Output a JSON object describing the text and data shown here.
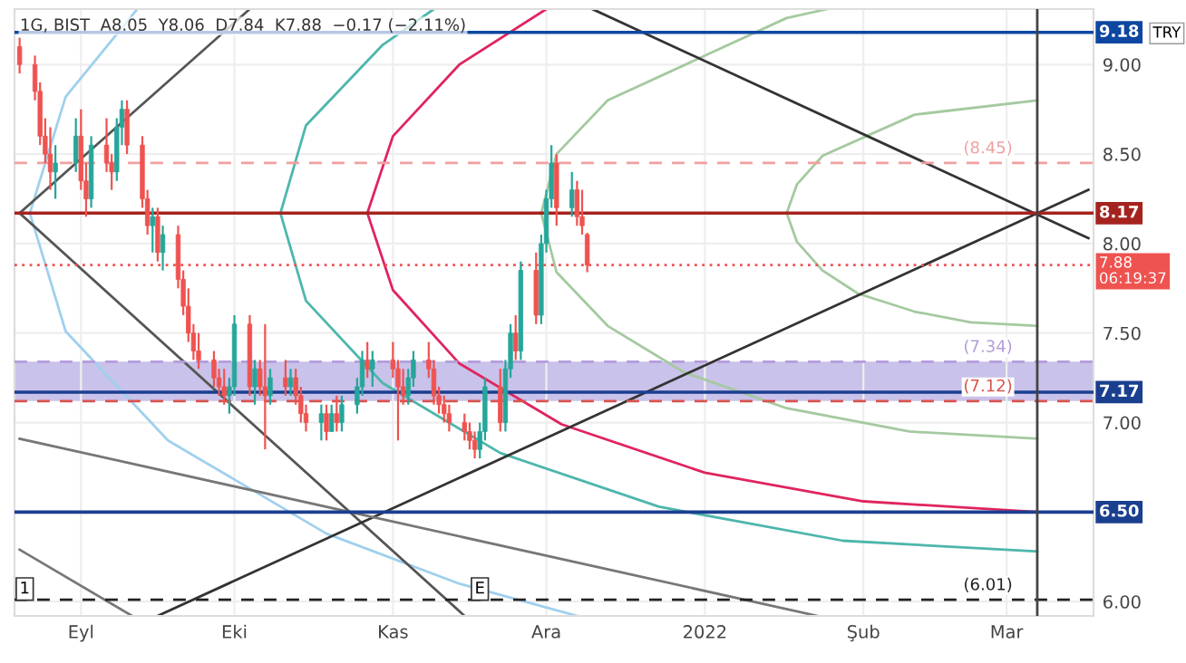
{
  "chart_data": {
    "type": "candlestick",
    "title": "1G, BIST  A8.05  Y8.06  D7.84  K7.88  −0.17 (−2.11%)",
    "x": [
      "2021-08-20",
      "2021-08-23",
      "2021-08-24",
      "2021-08-25",
      "2021-08-26",
      "2021-08-27",
      "2021-08-31",
      "2021-09-01",
      "2021-09-02",
      "2021-09-03",
      "2021-09-06",
      "2021-09-07",
      "2021-09-08",
      "2021-09-09",
      "2021-09-10",
      "2021-09-13",
      "2021-09-14",
      "2021-09-15",
      "2021-09-16",
      "2021-09-17",
      "2021-09-20",
      "2021-09-21",
      "2021-09-22",
      "2021-09-23",
      "2021-09-24",
      "2021-09-27",
      "2021-09-28",
      "2021-09-29",
      "2021-09-30",
      "2021-10-01",
      "2021-10-04",
      "2021-10-05",
      "2021-10-06",
      "2021-10-07",
      "2021-10-08",
      "2021-10-11",
      "2021-10-12",
      "2021-10-13",
      "2021-10-14",
      "2021-10-15",
      "2021-10-18",
      "2021-10-19",
      "2021-10-20",
      "2021-10-21",
      "2021-10-22",
      "2021-10-25",
      "2021-10-26",
      "2021-10-27",
      "2021-10-28",
      "2021-11-01",
      "2021-11-02",
      "2021-11-03",
      "2021-11-04",
      "2021-11-05",
      "2021-11-08",
      "2021-11-09",
      "2021-11-10",
      "2021-11-11",
      "2021-11-12",
      "2021-11-15",
      "2021-11-16",
      "2021-11-17",
      "2021-11-18",
      "2021-11-19",
      "2021-11-22",
      "2021-11-23",
      "2021-11-24",
      "2021-11-25",
      "2021-11-26",
      "2021-11-29",
      "2021-11-30",
      "2021-12-01",
      "2021-12-02",
      "2021-12-03",
      "2021-12-06",
      "2021-12-07",
      "2021-12-08",
      "2021-12-09"
    ],
    "ohlc": [
      [
        9.1,
        9.15,
        8.95,
        9.0
      ],
      [
        9.0,
        9.05,
        8.8,
        8.85
      ],
      [
        8.85,
        8.9,
        8.55,
        8.6
      ],
      [
        8.6,
        8.7,
        8.45,
        8.5
      ],
      [
        8.5,
        8.65,
        8.3,
        8.4
      ],
      [
        8.4,
        8.55,
        8.25,
        8.45
      ],
      [
        8.45,
        8.7,
        8.4,
        8.6
      ],
      [
        8.6,
        8.75,
        8.3,
        8.35
      ],
      [
        8.35,
        8.45,
        8.15,
        8.25
      ],
      [
        8.25,
        8.6,
        8.2,
        8.55
      ],
      [
        8.55,
        8.7,
        8.4,
        8.45
      ],
      [
        8.45,
        8.5,
        8.3,
        8.4
      ],
      [
        8.4,
        8.7,
        8.35,
        8.65
      ],
      [
        8.65,
        8.8,
        8.55,
        8.75
      ],
      [
        8.75,
        8.8,
        8.5,
        8.55
      ],
      [
        8.55,
        8.6,
        8.2,
        8.25
      ],
      [
        8.25,
        8.3,
        8.05,
        8.1
      ],
      [
        8.1,
        8.2,
        7.95,
        8.15
      ],
      [
        8.15,
        8.2,
        7.9,
        7.95
      ],
      [
        7.95,
        8.1,
        7.85,
        8.05
      ],
      [
        8.05,
        8.1,
        7.75,
        7.8
      ],
      [
        7.8,
        7.85,
        7.6,
        7.65
      ],
      [
        7.65,
        7.75,
        7.45,
        7.5
      ],
      [
        7.5,
        7.55,
        7.35,
        7.4
      ],
      [
        7.4,
        7.5,
        7.3,
        7.35
      ],
      [
        7.35,
        7.4,
        7.2,
        7.25
      ],
      [
        7.25,
        7.3,
        7.15,
        7.2
      ],
      [
        7.2,
        7.3,
        7.1,
        7.15
      ],
      [
        7.15,
        7.25,
        7.05,
        7.2
      ],
      [
        7.2,
        7.6,
        7.15,
        7.55
      ],
      [
        7.55,
        7.6,
        7.15,
        7.2
      ],
      [
        7.2,
        7.35,
        7.1,
        7.3
      ],
      [
        7.3,
        7.35,
        7.15,
        7.2
      ],
      [
        7.2,
        7.55,
        6.85,
        7.15
      ],
      [
        7.15,
        7.3,
        7.1,
        7.25
      ],
      [
        7.25,
        7.35,
        7.15,
        7.2
      ],
      [
        7.2,
        7.3,
        7.15,
        7.25
      ],
      [
        7.25,
        7.3,
        7.1,
        7.15
      ],
      [
        7.15,
        7.2,
        7.0,
        7.05
      ],
      [
        7.05,
        7.1,
        6.95,
        7.0
      ],
      [
        7.0,
        7.1,
        6.9,
        7.05
      ],
      [
        7.05,
        7.1,
        6.9,
        6.95
      ],
      [
        6.95,
        7.1,
        6.95,
        7.05
      ],
      [
        7.05,
        7.15,
        6.95,
        7.0
      ],
      [
        7.0,
        7.15,
        6.95,
        7.1
      ],
      [
        7.1,
        7.25,
        7.05,
        7.2
      ],
      [
        7.2,
        7.4,
        7.15,
        7.35
      ],
      [
        7.35,
        7.45,
        7.25,
        7.3
      ],
      [
        7.3,
        7.4,
        7.2,
        7.35
      ],
      [
        7.35,
        7.45,
        7.25,
        7.3
      ],
      [
        7.3,
        7.35,
        6.9,
        7.2
      ],
      [
        7.2,
        7.3,
        7.1,
        7.15
      ],
      [
        7.15,
        7.3,
        7.1,
        7.25
      ],
      [
        7.25,
        7.4,
        7.2,
        7.35
      ],
      [
        7.35,
        7.45,
        7.25,
        7.3
      ],
      [
        7.3,
        7.35,
        7.1,
        7.15
      ],
      [
        7.15,
        7.2,
        7.05,
        7.1
      ],
      [
        7.1,
        7.15,
        7.0,
        7.05
      ],
      [
        7.05,
        7.1,
        6.95,
        7.0
      ],
      [
        7.0,
        7.05,
        6.9,
        6.95
      ],
      [
        6.95,
        7.0,
        6.85,
        6.9
      ],
      [
        6.9,
        6.95,
        6.8,
        6.85
      ],
      [
        6.85,
        7.0,
        6.8,
        6.95
      ],
      [
        6.95,
        7.25,
        6.9,
        7.2
      ],
      [
        7.2,
        7.3,
        6.95,
        7.0
      ],
      [
        7.0,
        7.35,
        6.95,
        7.3
      ],
      [
        7.3,
        7.55,
        7.25,
        7.5
      ],
      [
        7.5,
        7.6,
        7.35,
        7.4
      ],
      [
        7.4,
        7.9,
        7.35,
        7.85
      ],
      [
        7.85,
        7.95,
        7.55,
        7.6
      ],
      [
        7.6,
        8.05,
        7.55,
        8.0
      ],
      [
        8.0,
        8.3,
        7.95,
        8.25
      ],
      [
        8.25,
        8.55,
        8.2,
        8.45
      ],
      [
        8.45,
        8.5,
        8.1,
        8.2
      ],
      [
        8.2,
        8.4,
        8.15,
        8.3
      ],
      [
        8.3,
        8.35,
        8.1,
        8.15
      ],
      [
        8.15,
        8.3,
        8.05,
        8.1
      ],
      [
        8.05,
        8.06,
        7.84,
        7.88
      ]
    ],
    "colors": [
      "#ef5350",
      "#ef5350",
      "#ef5350",
      "#ef5350",
      "#ef5350",
      "#26a69a",
      "#26a69a",
      "#ef5350",
      "#ef5350",
      "#26a69a",
      "#ef5350",
      "#ef5350",
      "#26a69a",
      "#26a69a",
      "#ef5350",
      "#ef5350",
      "#ef5350",
      "#26a69a",
      "#ef5350",
      "#26a69a",
      "#ef5350",
      "#ef5350",
      "#ef5350",
      "#ef5350",
      "#ef5350",
      "#ef5350",
      "#ef5350",
      "#ef5350",
      "#26a69a",
      "#26a69a",
      "#ef5350",
      "#26a69a",
      "#ef5350",
      "#ef5350",
      "#26a69a",
      "#ef5350",
      "#26a69a",
      "#ef5350",
      "#ef5350",
      "#ef5350",
      "#26a69a",
      "#ef5350",
      "#26a69a",
      "#ef5350",
      "#26a69a",
      "#26a69a",
      "#26a69a",
      "#ef5350",
      "#26a69a",
      "#ef5350",
      "#ef5350",
      "#ef5350",
      "#26a69a",
      "#26a69a",
      "#ef5350",
      "#ef5350",
      "#ef5350",
      "#ef5350",
      "#ef5350",
      "#ef5350",
      "#ef5350",
      "#ef5350",
      "#26a69a",
      "#26a69a",
      "#ef5350",
      "#26a69a",
      "#26a69a",
      "#ef5350",
      "#26a69a",
      "#ef5350",
      "#26a69a",
      "#26a69a",
      "#26a69a",
      "#ef5350",
      "#26a69a",
      "#ef5350",
      "#ef5350",
      "#ef5350"
    ],
    "series": [
      {
        "type": "line",
        "color": "#a5c9a0",
        "x": [
          "2022-03-07",
          "2022-02-11",
          "2022-01-24",
          "2022-01-19",
          "2022-01-17",
          "2022-01-19",
          "2022-01-24",
          "2022-01-31",
          "2022-02-11",
          "2022-02-22",
          "2022-03-07"
        ],
        "values": [
          8.8,
          8.72,
          8.49,
          8.33,
          8.17,
          8.01,
          7.85,
          7.72,
          7.62,
          7.56,
          7.54
        ]
      },
      {
        "type": "line",
        "color": "#a5c9a0",
        "x": [
          "2022-01-25",
          "2022-01-17",
          "2021-12-13",
          "2021-12-03",
          "2021-11-30",
          "2021-12-03",
          "2021-12-13",
          "2021-12-28",
          "2022-01-17",
          "2022-02-10",
          "2022-03-07"
        ],
        "values": [
          9.31,
          9.26,
          8.8,
          8.5,
          8.17,
          7.84,
          7.54,
          7.28,
          7.08,
          6.95,
          6.91
        ]
      },
      {
        "type": "line",
        "color": "#e0245e",
        "x": [
          "2021-12-01",
          "2021-11-14",
          "2021-11-01",
          "2021-10-27",
          "2021-11-01",
          "2021-11-14",
          "2021-12-04",
          "2022-01-01",
          "2022-02-01",
          "2022-03-07"
        ],
        "values": [
          9.31,
          9.0,
          8.6,
          8.17,
          7.74,
          7.33,
          6.99,
          6.72,
          6.56,
          6.5
        ]
      },
      {
        "type": "line",
        "color": "#4db6ac",
        "x": [
          "2021-11-09",
          "2021-10-30",
          "2021-10-15",
          "2021-10-10",
          "2021-10-15",
          "2021-10-30",
          "2021-11-22",
          "2021-12-23",
          "2022-01-28",
          "2022-03-07"
        ],
        "values": [
          9.31,
          9.11,
          8.66,
          8.17,
          7.68,
          7.22,
          6.83,
          6.53,
          6.34,
          6.28
        ]
      },
      {
        "type": "line",
        "color": "#9fd0ee",
        "x": [
          "2021-09-12",
          "2021-08-29",
          "2021-08-22",
          "2021-08-29",
          "2021-09-18",
          "2021-10-19",
          "2021-11-14",
          "2021-12-07"
        ],
        "values": [
          9.31,
          8.82,
          8.17,
          7.51,
          6.9,
          6.38,
          6.1,
          5.92
        ]
      },
      {
        "type": "line",
        "color": "#555555",
        "x": [
          "2021-08-20",
          "2021-10-04"
        ],
        "values": [
          8.17,
          9.31
        ]
      },
      {
        "type": "line",
        "color": "#555555",
        "x": [
          "2021-08-20",
          "2021-11-15"
        ],
        "values": [
          8.17,
          5.92
        ]
      },
      {
        "type": "line",
        "color": "#333333",
        "x": [
          "2021-09-16",
          "2022-03-17"
        ],
        "values": [
          5.92,
          8.3
        ]
      },
      {
        "type": "line",
        "color": "#333333",
        "x": [
          "2021-12-10",
          "2022-03-17"
        ],
        "values": [
          9.31,
          8.03
        ]
      },
      {
        "type": "line",
        "color": "#777777",
        "x": [
          "2021-08-20",
          "2022-01-23"
        ],
        "values": [
          6.91,
          5.92
        ]
      },
      {
        "type": "line",
        "color": "#777777",
        "x": [
          "2021-08-20",
          "2021-09-11"
        ],
        "values": [
          6.29,
          5.92
        ]
      }
    ],
    "xlim": [
      "2021-08-19",
      "2022-03-18"
    ],
    "xticks": [
      {
        "value": "2021-09-01",
        "label": "Eyl"
      },
      {
        "value": "2021-10-01",
        "label": "Eki"
      },
      {
        "value": "2021-11-01",
        "label": "Kas"
      },
      {
        "value": "2021-12-01",
        "label": "Ara"
      },
      {
        "value": "2022-01-01",
        "label": "2022"
      },
      {
        "value": "2022-02-01",
        "label": "Şub"
      },
      {
        "value": "2022-03-01",
        "label": "Mar"
      }
    ],
    "ylim": [
      5.92,
      9.31
    ],
    "yticks": [
      {
        "value": 6.0,
        "label": "6.00"
      },
      {
        "value": 6.5,
        "label": null
      },
      {
        "value": 7.0,
        "label": "7.00"
      },
      {
        "value": 7.5,
        "label": "7.50"
      },
      {
        "value": 8.0,
        "label": "8.00"
      },
      {
        "value": 8.5,
        "label": "8.50"
      },
      {
        "value": 9.0,
        "label": "9.00"
      }
    ],
    "ref_lines": [
      {
        "axis": "y",
        "value": 9.18,
        "label": "9.18",
        "color": "#0d47a1",
        "line_style": "solid"
      },
      {
        "axis": "y",
        "value": 8.45,
        "label": "(8.45)",
        "color": "#f0a0a0",
        "line_style": "dashed"
      },
      {
        "axis": "y",
        "value": 8.17,
        "label": "8.17",
        "color": "#a5231f",
        "line_style": "solid"
      },
      {
        "axis": "y",
        "value": 7.88,
        "label": "7.88\n06:19:37",
        "color": "#ef5350",
        "line_style": "dotted"
      },
      {
        "axis": "y",
        "value": 7.34,
        "label": "(7.34)",
        "color": "#b39ddb",
        "line_style": "dashed"
      },
      {
        "axis": "y",
        "value": 7.17,
        "label": "7.17",
        "color": "#1a3f8f",
        "line_style": "solid"
      },
      {
        "axis": "y",
        "value": 7.12,
        "label": "(7.12)",
        "color": "#d9534f",
        "line_style": "dashed"
      },
      {
        "axis": "y",
        "value": 6.5,
        "label": "6.50",
        "color": "#1a3f8f",
        "line_style": "solid"
      },
      {
        "axis": "y",
        "value": 6.01,
        "label": "(6.01)",
        "color": "#222222",
        "line_style": "dashed"
      },
      {
        "axis": "x",
        "value": "2022-03-07",
        "label": null,
        "color": "#444444",
        "line_style": "solid"
      }
    ],
    "bands": [
      {
        "axis": "y",
        "from": 7.12,
        "to": 7.34,
        "label": null,
        "color": "#9c8fd8"
      }
    ],
    "annotations": [
      "TRY",
      {
        "text": "E",
        "x": "2021-11-18",
        "y": 6.07
      },
      {
        "text": "1",
        "x": "2021-08-21",
        "y": 6.07
      }
    ],
    "grid": true,
    "legend": false
  }
}
